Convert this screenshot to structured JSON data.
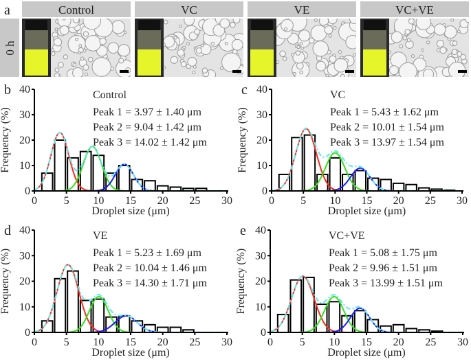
{
  "panel_a": {
    "label": "a",
    "row_label": "0 h",
    "columns": [
      "Control",
      "VC",
      "VE",
      "VC+VE"
    ],
    "colors": {
      "header_bg": "#c8c8c8",
      "liquid": "#e6f52a",
      "vial_bg": "#2a2a2a",
      "micrograph_bg": "#e4e4e4"
    }
  },
  "chart_data": [
    {
      "type": "bar",
      "panel": "b",
      "title": "Control",
      "xlabel": "Droplet size (μm)",
      "ylabel": "Frequency (%)",
      "xlim": [
        0,
        30
      ],
      "ylim": [
        0,
        40
      ],
      "xticks": [
        "0",
        "5",
        "10",
        "15",
        "20",
        "25",
        "30"
      ],
      "yticks": [
        "0",
        "10",
        "20",
        "30",
        "40"
      ],
      "bin_centers": [
        2,
        4,
        6,
        8,
        10,
        12,
        14,
        16,
        18,
        20,
        22,
        24,
        26
      ],
      "values": [
        7,
        20,
        13,
        15.5,
        14,
        7,
        10,
        4.5,
        4,
        2,
        1.5,
        1,
        1
      ],
      "annotations": [
        "Peak 1 = 3.97 ± 1.40 μm",
        "Peak 2 = 9.04 ± 1.42 μm",
        "Peak 3 = 14.02 ± 1.42 μm"
      ],
      "fits": [
        {
          "mean": 3.97,
          "sd": 1.4,
          "amp": 23,
          "color": "#ff2a1a"
        },
        {
          "mean": 9.04,
          "sd": 1.42,
          "amp": 17.5,
          "color": "#33e01a"
        },
        {
          "mean": 14.02,
          "sd": 1.42,
          "amp": 10.5,
          "color": "#1a1aff"
        }
      ],
      "sum_color": "#66e8f0"
    },
    {
      "type": "bar",
      "panel": "c",
      "title": "VC",
      "xlabel": "Droplet size (μm)",
      "ylabel": "Frequency (%)",
      "xlim": [
        0,
        30
      ],
      "ylim": [
        0,
        40
      ],
      "xticks": [
        "0",
        "5",
        "10",
        "15",
        "20",
        "25",
        "30"
      ],
      "yticks": [
        "0",
        "10",
        "20",
        "30",
        "40"
      ],
      "bin_centers": [
        2,
        4,
        6,
        8,
        10,
        12,
        14,
        16,
        18,
        20,
        22,
        24,
        26,
        28
      ],
      "values": [
        6.5,
        21,
        22,
        6.5,
        13,
        6.5,
        8,
        5,
        4.5,
        3,
        2.5,
        1.2,
        0.7,
        0.3
      ],
      "annotations": [
        "Peak 1 = 5.43 ± 1.62 μm",
        "Peak 2 = 10.01 ± 1.54 μm",
        "Peak 3 = 13.97 ± 1.54 μm"
      ],
      "fits": [
        {
          "mean": 5.43,
          "sd": 1.62,
          "amp": 24.5,
          "color": "#ff2a1a"
        },
        {
          "mean": 10.01,
          "sd": 1.54,
          "amp": 15,
          "color": "#33e01a"
        },
        {
          "mean": 13.97,
          "sd": 1.54,
          "amp": 9,
          "color": "#1a1aff"
        }
      ],
      "sum_color": "#66e8f0"
    },
    {
      "type": "bar",
      "panel": "d",
      "title": "VE",
      "xlabel": "Droplet size (μm)",
      "ylabel": "Frequency (%)",
      "xlim": [
        0,
        30
      ],
      "ylim": [
        0,
        40
      ],
      "xticks": [
        "0",
        "5",
        "10",
        "15",
        "20",
        "25",
        "30"
      ],
      "yticks": [
        "0",
        "10",
        "20",
        "30",
        "40"
      ],
      "bin_centers": [
        2,
        4,
        6,
        8,
        10,
        12,
        14,
        16,
        18,
        20,
        22,
        24
      ],
      "values": [
        4.5,
        21,
        24,
        12.5,
        13,
        6,
        6.5,
        4.5,
        3,
        2,
        2,
        1
      ],
      "annotations": [
        "Peak 1 = 5.23 ± 1.69 μm",
        "Peak 2 = 10.04 ± 1.46 μm",
        "Peak 3 = 14.30 ± 1.71 μm"
      ],
      "fits": [
        {
          "mean": 5.23,
          "sd": 1.69,
          "amp": 26.5,
          "color": "#ff2a1a"
        },
        {
          "mean": 10.04,
          "sd": 1.46,
          "amp": 14,
          "color": "#33e01a"
        },
        {
          "mean": 14.3,
          "sd": 1.71,
          "amp": 6.5,
          "color": "#1a1aff"
        }
      ],
      "sum_color": "#66e8f0"
    },
    {
      "type": "bar",
      "panel": "e",
      "title": "VC+VE",
      "xlabel": "Droplet size (μm)",
      "ylabel": "Frequency (%)",
      "xlim": [
        0,
        30
      ],
      "ylim": [
        0,
        40
      ],
      "xticks": [
        "0",
        "5",
        "10",
        "15",
        "20",
        "25",
        "30"
      ],
      "yticks": [
        "0",
        "10",
        "20",
        "30",
        "40"
      ],
      "bin_centers": [
        2,
        4,
        6,
        8,
        10,
        12,
        14,
        16,
        18,
        20,
        22,
        24,
        26
      ],
      "values": [
        7,
        20.5,
        21.5,
        11,
        12,
        6.5,
        8.5,
        5,
        2.5,
        3,
        1.5,
        1,
        0.5
      ],
      "annotations": [
        "Peak 1 = 5.08 ± 1.75 μm",
        "Peak 2 = 9.96 ± 1.51 μm",
        "Peak 3 = 13.99 ± 1.51 μm"
      ],
      "fits": [
        {
          "mean": 5.08,
          "sd": 1.75,
          "amp": 22,
          "color": "#ff2a1a"
        },
        {
          "mean": 9.96,
          "sd": 1.51,
          "amp": 14,
          "color": "#33e01a"
        },
        {
          "mean": 13.99,
          "sd": 1.51,
          "amp": 9.5,
          "color": "#1a1aff"
        }
      ],
      "sum_color": "#66e8f0"
    }
  ]
}
